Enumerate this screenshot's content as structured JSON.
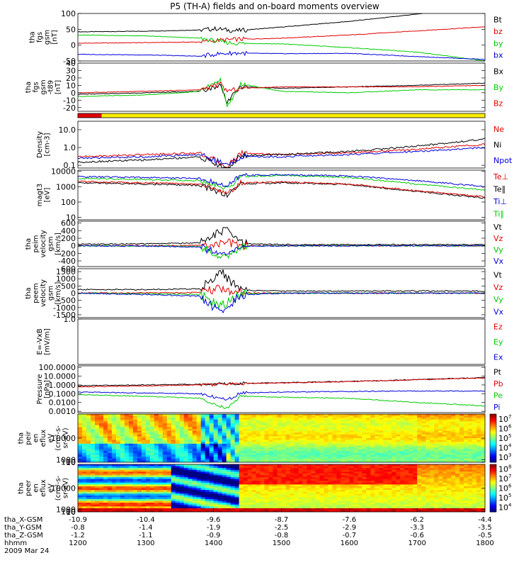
{
  "title": "P5 (TH-A) fields and on-board moments overview",
  "colors": {
    "black": "#000000",
    "red": "#e00000",
    "green": "#00cc00",
    "blue": "#0000dd",
    "yellow": "#ffee00"
  },
  "chart_data": [
    {
      "type": "line",
      "ylabel": [
        "tha",
        "fgs",
        "gsm",
        "[nT]"
      ],
      "ylim": [
        -50,
        100
      ],
      "ticks": [
        100,
        50,
        0,
        -50
      ],
      "legend": [
        {
          "label": "Bt",
          "color": "black"
        },
        {
          "label": "bz",
          "color": "red"
        },
        {
          "label": "by",
          "color": "green"
        },
        {
          "label": "bx",
          "color": "blue"
        }
      ],
      "series": [
        {
          "color": "black",
          "x": [
            1200,
            1300,
            1380,
            1405,
            1430,
            1500,
            1600,
            1700,
            1800
          ],
          "y": [
            42,
            44,
            48,
            52,
            45,
            57,
            75,
            98,
            128
          ]
        },
        {
          "color": "red",
          "x": [
            1200,
            1300,
            1380,
            1405,
            1430,
            1500,
            1600,
            1700,
            1800
          ],
          "y": [
            6,
            8,
            10,
            15,
            18,
            22,
            32,
            45,
            58
          ]
        },
        {
          "color": "green",
          "x": [
            1200,
            1300,
            1380,
            1405,
            1430,
            1500,
            1600,
            1700,
            1800
          ],
          "y": [
            32,
            29,
            22,
            12,
            6,
            4,
            -8,
            -22,
            -50
          ]
        },
        {
          "color": "blue",
          "x": [
            1200,
            1300,
            1380,
            1405,
            1430,
            1500,
            1600,
            1700,
            1800
          ],
          "y": [
            -29,
            -31,
            -35,
            -28,
            -25,
            -27,
            -26,
            -36,
            -45
          ]
        }
      ]
    },
    {
      "type": "line",
      "ylabel": [
        "tha",
        "fgs",
        "gsm",
        "-t89",
        "[nT]"
      ],
      "ylim": [
        -25,
        40
      ],
      "ticks": [
        40,
        30,
        20,
        10,
        0,
        -10,
        -20
      ],
      "legend": [
        {
          "label": "Bx",
          "color": "black"
        },
        {
          "label": "By",
          "color": "green"
        },
        {
          "label": "Bz",
          "color": "red"
        }
      ],
      "series": [
        {
          "color": "black",
          "x": [
            1200,
            1300,
            1380,
            1410,
            1420,
            1440,
            1500,
            1600,
            1700,
            1800
          ],
          "y": [
            -2,
            0,
            2,
            10,
            -12,
            8,
            6,
            8,
            10,
            13
          ]
        },
        {
          "color": "green",
          "x": [
            1200,
            1300,
            1380,
            1410,
            1420,
            1440,
            1500,
            1600,
            1700,
            1800
          ],
          "y": [
            -5,
            -3,
            2,
            18,
            -20,
            12,
            2,
            0,
            4,
            4
          ]
        },
        {
          "color": "red",
          "x": [
            1200,
            1300,
            1380,
            1410,
            1420,
            1440,
            1500,
            1600,
            1700,
            1800
          ],
          "y": [
            0,
            2,
            4,
            12,
            2,
            6,
            8,
            8,
            8,
            10
          ]
        }
      ]
    },
    {
      "type": "bar",
      "segments": [
        {
          "x0": 1200,
          "x1": 1235,
          "color": "red"
        },
        {
          "x0": 1235,
          "x1": 1800,
          "color": "yellow"
        }
      ]
    },
    {
      "type": "line",
      "log": true,
      "ylabel": [
        "Density",
        "[cm-3]"
      ],
      "ylim": [
        0.07,
        30
      ],
      "ticks": [
        {
          "v": 10,
          "label": "10.0"
        },
        {
          "v": 1,
          "label": "1.0"
        },
        {
          "v": 0.1,
          "label": "0.1"
        }
      ],
      "legend": [
        {
          "label": "Ne",
          "color": "red"
        },
        {
          "label": "Ni",
          "color": "black"
        },
        {
          "label": "Npot",
          "color": "blue"
        }
      ],
      "series": [
        {
          "color": "red",
          "x": [
            1200,
            1300,
            1380,
            1420,
            1440,
            1500,
            1600,
            1700,
            1800
          ],
          "y": [
            0.3,
            0.4,
            0.5,
            0.08,
            0.5,
            0.4,
            0.5,
            0.8,
            1.5
          ]
        },
        {
          "color": "black",
          "x": [
            1200,
            1300,
            1380,
            1420,
            1440,
            1500,
            1600,
            1700,
            1800
          ],
          "y": [
            0.15,
            0.2,
            0.3,
            0.06,
            0.35,
            0.4,
            0.6,
            1.2,
            3.0
          ]
        },
        {
          "color": "blue",
          "x": [
            1200,
            1300,
            1380,
            1420,
            1440,
            1500,
            1600,
            1700,
            1800
          ],
          "y": [
            0.25,
            0.3,
            0.4,
            0.1,
            0.3,
            0.3,
            0.4,
            0.6,
            1.0
          ]
        }
      ]
    },
    {
      "type": "line",
      "log": true,
      "ylabel": [
        "magt3",
        "[eV]"
      ],
      "ylim": [
        7,
        12000
      ],
      "ticks": [
        {
          "v": 10000,
          "label": "10000"
        },
        {
          "v": 1000,
          "label": "1000"
        },
        {
          "v": 100,
          "label": "100"
        },
        {
          "v": 10,
          "label": "10"
        }
      ],
      "legend": [
        {
          "label": "Te⊥",
          "color": "red"
        },
        {
          "label": "Te∥",
          "color": "black"
        },
        {
          "label": "Ti⊥",
          "color": "blue"
        },
        {
          "label": "Ti∥",
          "color": "green"
        }
      ],
      "series": [
        {
          "color": "black",
          "x": [
            1200,
            1300,
            1380,
            1420,
            1440,
            1500,
            1600,
            1700,
            1800
          ],
          "y": [
            1800,
            1500,
            1200,
            300,
            1500,
            1800,
            1400,
            500,
            180
          ]
        },
        {
          "color": "red",
          "x": [
            1200,
            1300,
            1380,
            1420,
            1440,
            1500,
            1600,
            1700,
            1800
          ],
          "y": [
            2200,
            1800,
            1500,
            350,
            1800,
            2000,
            1500,
            550,
            220
          ]
        },
        {
          "color": "green",
          "x": [
            1200,
            1300,
            1380,
            1420,
            1440,
            1500,
            1600,
            1700,
            1800
          ],
          "y": [
            3500,
            3000,
            2500,
            800,
            4500,
            5500,
            4000,
            1500,
            600
          ]
        },
        {
          "color": "blue",
          "x": [
            1200,
            1300,
            1380,
            1420,
            1440,
            1500,
            1600,
            1700,
            1800
          ],
          "y": [
            4500,
            4000,
            3500,
            1000,
            5500,
            6000,
            5000,
            2500,
            1000
          ]
        }
      ]
    },
    {
      "type": "line",
      "ylabel": [
        "tha",
        "peim",
        "velocity",
        "gsm",
        "[km/s]"
      ],
      "ylim": [
        -550,
        650
      ],
      "ticks": [
        600,
        400,
        200,
        0,
        -200,
        -400
      ],
      "legend": [
        {
          "label": "Vt",
          "color": "black"
        },
        {
          "label": "Vz",
          "color": "red"
        },
        {
          "label": "Vy",
          "color": "green"
        },
        {
          "label": "Vx",
          "color": "blue"
        }
      ],
      "series": [
        {
          "color": "black",
          "x": [
            1200,
            1300,
            1380,
            1420,
            1440,
            1500,
            1600,
            1700,
            1800
          ],
          "y": [
            40,
            50,
            80,
            450,
            60,
            30,
            30,
            30,
            30
          ]
        },
        {
          "color": "red",
          "x": [
            1200,
            1300,
            1380,
            1420,
            1440,
            1500,
            1600,
            1700,
            1800
          ],
          "y": [
            0,
            5,
            10,
            80,
            5,
            0,
            0,
            0,
            0
          ]
        },
        {
          "color": "green",
          "x": [
            1200,
            1300,
            1380,
            1420,
            1440,
            1500,
            1600,
            1700,
            1800
          ],
          "y": [
            0,
            -5,
            -20,
            -350,
            -10,
            0,
            0,
            0,
            0
          ]
        },
        {
          "color": "blue",
          "x": [
            1200,
            1300,
            1380,
            1420,
            1440,
            1500,
            1600,
            1700,
            1800
          ],
          "y": [
            0,
            -10,
            -30,
            -250,
            -20,
            0,
            0,
            0,
            0
          ]
        }
      ]
    },
    {
      "type": "line",
      "ylabel": [
        "tha",
        "peem",
        "velocity",
        "gsm",
        "[km/s]"
      ],
      "ylim": [
        -1700,
        1700
      ],
      "ticks": [
        {
          "v": 1500,
          "label": "1500"
        },
        {
          "v": 1000,
          "label": "1000"
        },
        {
          "v": 500,
          "label": "500"
        },
        {
          "v": 0,
          "label": "0"
        },
        {
          "v": -500,
          "label": "-500"
        },
        {
          "v": -1000,
          "label": "-1000"
        },
        {
          "v": -1500,
          "label": "-1500"
        }
      ],
      "topLabel": "600",
      "legend": [
        {
          "label": "Vt",
          "color": "black"
        },
        {
          "label": "Vz",
          "color": "red"
        },
        {
          "label": "Vy",
          "color": "green"
        },
        {
          "label": "Vx",
          "color": "blue"
        }
      ],
      "series": [
        {
          "color": "black",
          "x": [
            1200,
            1300,
            1380,
            1410,
            1440,
            1500,
            1600,
            1700,
            1800
          ],
          "y": [
            250,
            250,
            300,
            1500,
            200,
            150,
            150,
            150,
            150
          ]
        },
        {
          "color": "red",
          "x": [
            1200,
            1300,
            1380,
            1410,
            1440,
            1500,
            1600,
            1700,
            1800
          ],
          "y": [
            0,
            20,
            50,
            300,
            20,
            0,
            0,
            0,
            0
          ]
        },
        {
          "color": "green",
          "x": [
            1200,
            1300,
            1380,
            1410,
            1440,
            1500,
            1600,
            1700,
            1800
          ],
          "y": [
            0,
            -50,
            -100,
            -900,
            -50,
            0,
            0,
            0,
            0
          ]
        },
        {
          "color": "blue",
          "x": [
            1200,
            1300,
            1380,
            1410,
            1440,
            1500,
            1600,
            1700,
            1800
          ],
          "y": [
            0,
            -100,
            -200,
            -1400,
            -100,
            0,
            0,
            0,
            0
          ]
        }
      ]
    },
    {
      "type": "line",
      "ylabel": [
        "E=-VxB",
        "[mV/m]"
      ],
      "ylim": [
        0,
        1
      ],
      "ticks": [
        {
          "v": 1,
          "label": "1.0"
        }
      ],
      "legend": [
        {
          "label": "Ez",
          "color": "red"
        },
        {
          "label": "Ey",
          "color": "green"
        },
        {
          "label": "Ex",
          "color": "blue"
        }
      ],
      "series": []
    },
    {
      "type": "line",
      "log": true,
      "ylabel": [
        "Pressure",
        "[nPa]"
      ],
      "ylim": [
        0.0007,
        150
      ],
      "ticks": [
        {
          "v": 100,
          "label": "100.0000"
        },
        {
          "v": 10,
          "label": "10.0000"
        },
        {
          "v": 1,
          "label": "1.0000"
        },
        {
          "v": 0.1,
          "label": "0.1000"
        },
        {
          "v": 0.01,
          "label": "0.0100"
        },
        {
          "v": 0.001,
          "label": "0.0010"
        }
      ],
      "legend": [
        {
          "label": "Pt",
          "color": "black"
        },
        {
          "label": "Pb",
          "color": "red"
        },
        {
          "label": "Pe",
          "color": "green"
        },
        {
          "label": "Pi",
          "color": "blue"
        }
      ],
      "series": [
        {
          "color": "black",
          "x": [
            1200,
            1300,
            1380,
            1420,
            1440,
            1500,
            1600,
            1700,
            1800
          ],
          "y": [
            0.8,
            1.0,
            1.2,
            1.3,
            1.5,
            1.8,
            2.5,
            4.0,
            7.0
          ]
        },
        {
          "color": "red",
          "x": [
            1200,
            1300,
            1380,
            1420,
            1440,
            1500,
            1600,
            1700,
            1800
          ],
          "y": [
            0.6,
            0.8,
            1.0,
            1.2,
            1.4,
            1.7,
            2.4,
            3.8,
            6.5
          ]
        },
        {
          "color": "blue",
          "x": [
            1200,
            1300,
            1380,
            1420,
            1440,
            1500,
            1600,
            1700,
            1800
          ],
          "y": [
            0.15,
            0.12,
            0.1,
            0.02,
            0.12,
            0.15,
            0.18,
            0.2,
            0.2
          ]
        },
        {
          "color": "green",
          "x": [
            1200,
            1300,
            1380,
            1420,
            1440,
            1500,
            1600,
            1700,
            1800
          ],
          "y": [
            0.08,
            0.05,
            0.03,
            0.002,
            0.05,
            0.04,
            0.03,
            0.01,
            0.004
          ]
        }
      ]
    },
    {
      "type": "heatmap",
      "ylabel": [
        "tha",
        "peir",
        "en",
        "eflux",
        "eV",
        "(cm²-s-",
        "sr-eV)"
      ],
      "ylim": [
        8,
        20000
      ],
      "ticks": [
        {
          "v": 10000,
          "label": "10000"
        },
        {
          "v": 1000,
          "label": "1000"
        },
        {
          "v": 100,
          "label": "100"
        },
        {
          "v": 10,
          "label": "10"
        }
      ],
      "colorbar": {
        "min_exp": 3,
        "max_exp": 7
      }
    },
    {
      "type": "heatmap",
      "ylabel": [
        "tha",
        "peer",
        "en",
        "eflux",
        "eV",
        "(cm²-s-",
        "sr-eV)"
      ],
      "ylim": [
        8,
        20000
      ],
      "ticks": [
        {
          "v": 10000,
          "label": "10000"
        },
        {
          "v": 1000,
          "label": "1000"
        },
        {
          "v": 100,
          "label": "100"
        },
        {
          "v": 10,
          "label": "10"
        }
      ],
      "colorbar": {
        "min_exp": 4,
        "max_exp": 8
      }
    }
  ],
  "axis": {
    "xlim": [
      1200,
      1800
    ],
    "ticks": [
      {
        "hhmm": "1200",
        "x": "-10.9",
        "y": "-0.8",
        "z": "-1.2"
      },
      {
        "hhmm": "1300",
        "x": "-10.4",
        "y": "-1.4",
        "z": "-1.1"
      },
      {
        "hhmm": "1400",
        "x": "-9.6",
        "y": "-1.9",
        "z": "-0.9"
      },
      {
        "hhmm": "1500",
        "x": "-8.7",
        "y": "-2.5",
        "z": "-0.8"
      },
      {
        "hhmm": "1600",
        "x": "-7.6",
        "y": "-2.9",
        "z": "-0.7"
      },
      {
        "hhmm": "1700",
        "x": "-6.2",
        "y": "-3.3",
        "z": "-0.6"
      },
      {
        "hhmm": "1800",
        "x": "-4.4",
        "y": "-3.5",
        "z": "-0.5"
      }
    ],
    "row_labels": [
      "tha_X-GSM",
      "tha_Y-GSM",
      "tha_Z-GSM",
      "hhmm"
    ],
    "date": "2009 Mar 24"
  }
}
